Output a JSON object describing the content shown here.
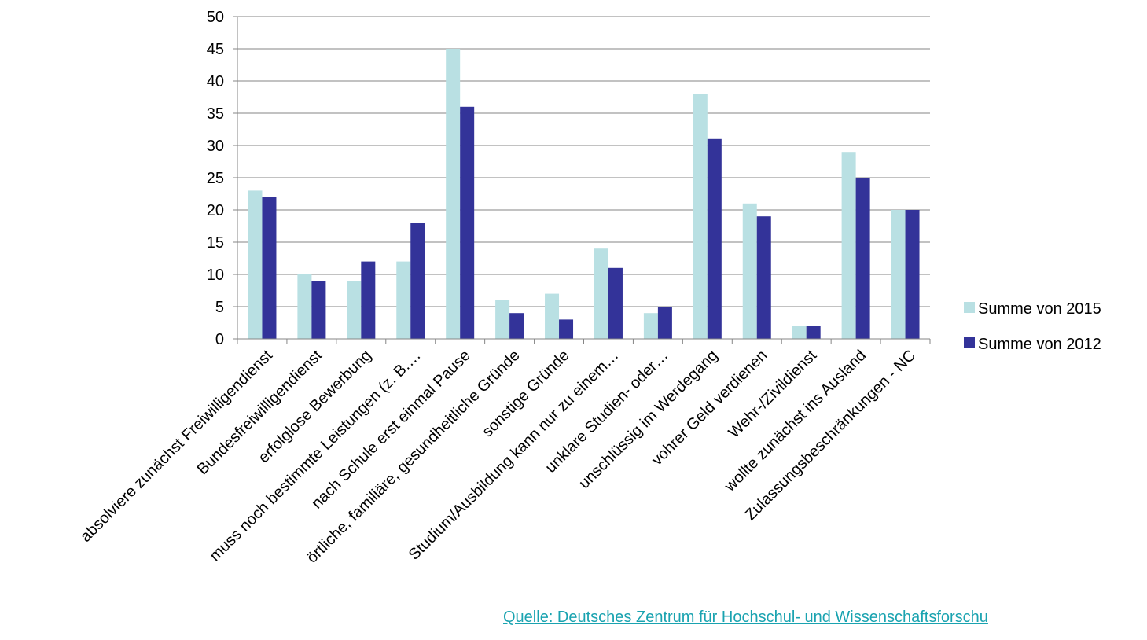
{
  "chart_data": {
    "type": "bar",
    "categories": [
      "absolviere zunächst Freiwilligendienst",
      "Bundesfreiwilligendienst",
      "erfolglose Bewerbung",
      "muss noch bestimmte Leistungen (z. B.…",
      "nach Schule erst einmal Pause",
      "örtliche, familiäre, gesundheitliche Gründe",
      "sonstige Gründe",
      "Studium/Ausbildung kann nur zu einem…",
      "unklare Studien- oder…",
      "unschlüssig im Werdegang",
      "vohrer Geld verdienen",
      "Wehr-/Zivildienst",
      "wollte zunächst ins Ausland",
      "Zulassungsbeschränkungen - NC"
    ],
    "series": [
      {
        "name": "Summe von 2015",
        "color": "#b9e0e3",
        "values": [
          23,
          10,
          9,
          12,
          45,
          6,
          7,
          14,
          4,
          38,
          21,
          2,
          29,
          20
        ]
      },
      {
        "name": "Summe von 2012",
        "color": "#333399",
        "values": [
          22,
          9,
          12,
          18,
          36,
          4,
          3,
          11,
          5,
          31,
          19,
          2,
          25,
          20
        ]
      }
    ],
    "yticks": [
      "0",
      "5",
      "10",
      "15",
      "20",
      "25",
      "30",
      "35",
      "40",
      "45",
      "50"
    ],
    "ylim": [
      0,
      50
    ],
    "grid": true,
    "legend_position": "right"
  },
  "source": {
    "label": "Quelle: Deutsches Zentrum für Hochschul- und Wissenschaftsforschu"
  }
}
